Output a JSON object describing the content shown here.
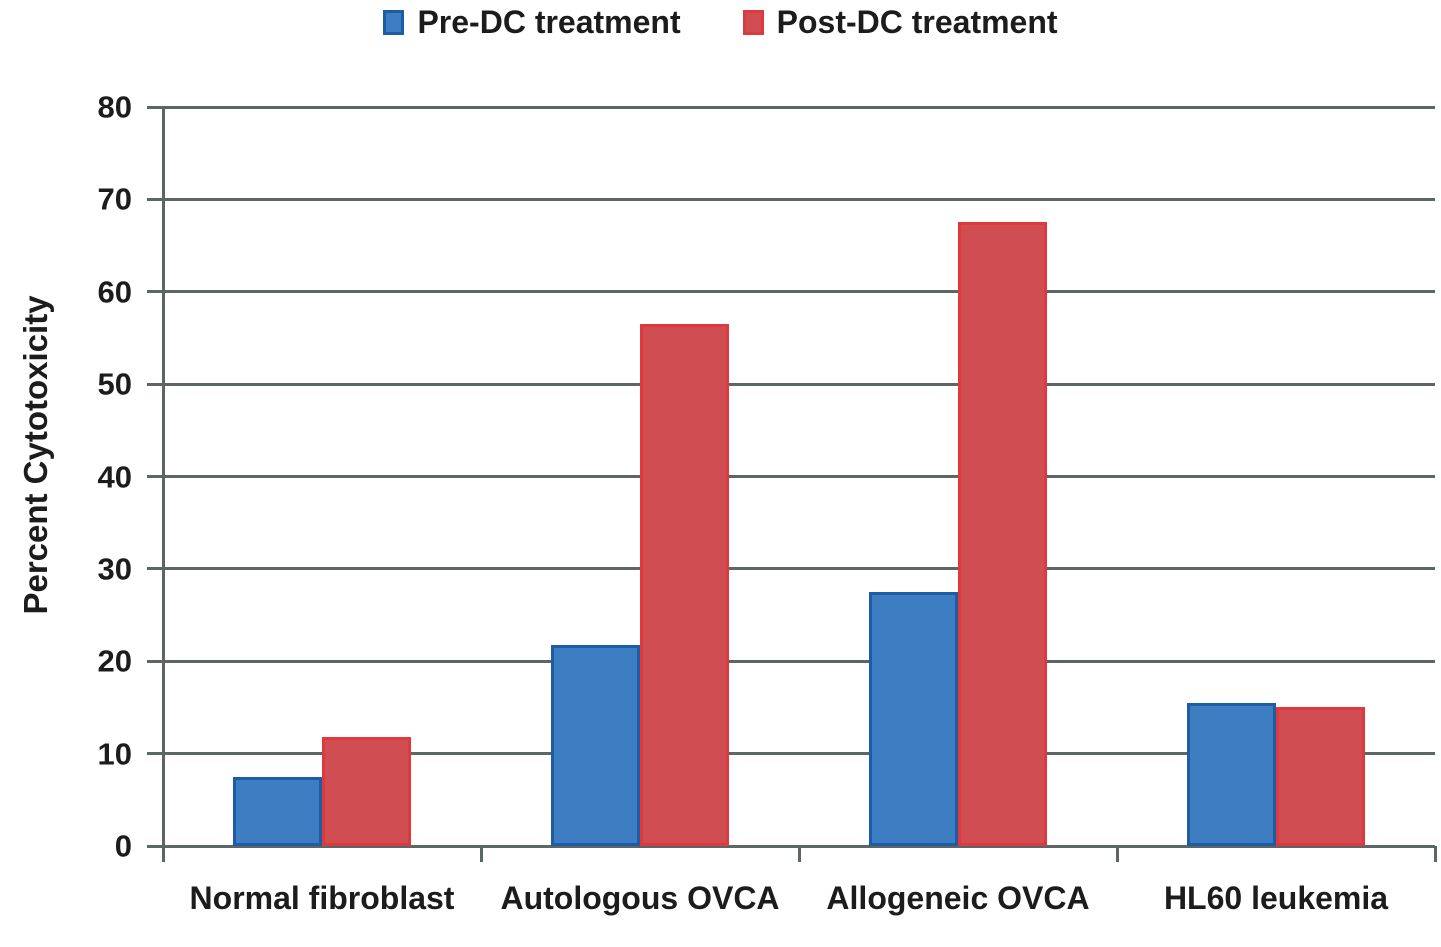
{
  "chart_data": {
    "type": "bar",
    "title": "",
    "categories": [
      "Normal fibroblast",
      "Autologous OVCA",
      "Allogeneic OVCA",
      "HL60 leukemia"
    ],
    "series": [
      {
        "name": "Pre-DC treatment",
        "fill": "#3d7dc2",
        "border": "#1e5ca6",
        "values": [
          7.5,
          21.8,
          27.5,
          15.5
        ]
      },
      {
        "name": "Post-DC treatment",
        "fill": "#d04e52",
        "border": "#dd3a3d",
        "values": [
          11.8,
          56.5,
          67.5,
          15
        ]
      }
    ],
    "xlabel": "",
    "ylabel": "Percent Cytotoxicity",
    "ylim": [
      0,
      80
    ],
    "yticks": [
      0,
      10,
      20,
      30,
      40,
      50,
      60,
      70,
      80
    ],
    "grid": true,
    "grid_color": "#5d6665",
    "text_color": "#1c1c1c",
    "background_color": "#ffffff",
    "legend_position": "top-center"
  }
}
